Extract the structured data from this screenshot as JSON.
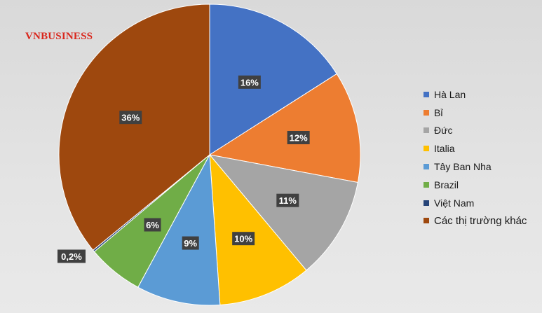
{
  "watermark": "VNBUSINESS",
  "chart_data": {
    "type": "pie",
    "title": "",
    "legend_position": "right",
    "slices": [
      {
        "name": "Hà Lan",
        "value": 16,
        "label": "16%",
        "color": "#4472c4"
      },
      {
        "name": "Bỉ",
        "value": 12,
        "label": "12%",
        "color": "#ed7d31"
      },
      {
        "name": "Đức",
        "value": 11,
        "label": "11%",
        "color": "#a5a5a5"
      },
      {
        "name": "Italia",
        "value": 10,
        "label": "10%",
        "color": "#ffc000"
      },
      {
        "name": "Tây Ban Nha",
        "value": 9,
        "label": "9%",
        "color": "#5b9bd5"
      },
      {
        "name": "Brazil",
        "value": 6,
        "label": "6%",
        "color": "#70ad47"
      },
      {
        "name": "Việt Nam",
        "value": 0.2,
        "label": "0,2%",
        "color": "#264478"
      },
      {
        "name": "Các thị trường khác",
        "value": 36,
        "label": "36%",
        "color": "#9e480e"
      }
    ]
  }
}
